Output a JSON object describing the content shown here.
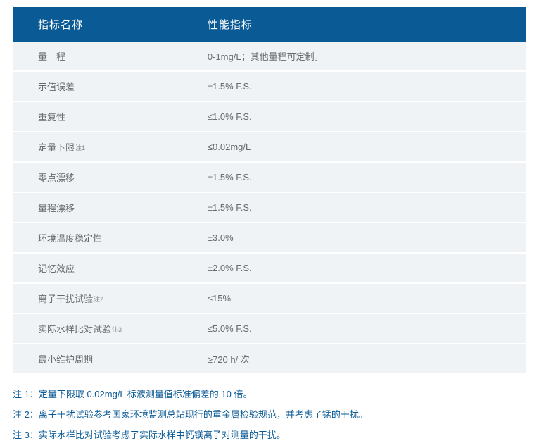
{
  "table": {
    "header_bg": "#0a5a95",
    "header_color": "#ffffff",
    "row_bg": "#f0f3f5",
    "text_color": "#666a6e",
    "columns": [
      "指标名称",
      "性能指标"
    ],
    "rows": [
      {
        "name": "量　程",
        "sup": "",
        "value": "0-1mg/L；其他量程可定制。"
      },
      {
        "name": "示值误差",
        "sup": "",
        "value": "±1.5% F.S."
      },
      {
        "name": "重复性",
        "sup": "",
        "value": "≤1.0% F.S."
      },
      {
        "name": "定量下限",
        "sup": "注1",
        "value": "≤0.02mg/L"
      },
      {
        "name": "零点漂移",
        "sup": "",
        "value": "±1.5% F.S."
      },
      {
        "name": "量程漂移",
        "sup": "",
        "value": "±1.5% F.S."
      },
      {
        "name": "环境温度稳定性",
        "sup": "",
        "value": "±3.0%"
      },
      {
        "name": "记忆效应",
        "sup": "",
        "value": "±2.0% F.S."
      },
      {
        "name": "离子干扰试验",
        "sup": "注2",
        "value": "≤15%"
      },
      {
        "name": "实际水样比对试验",
        "sup": "注3",
        "value": "≤5.0% F.S."
      },
      {
        "name": "最小维护周期",
        "sup": "",
        "value": "≥720 h/ 次"
      }
    ]
  },
  "notes": {
    "color": "#0a5a95",
    "items": [
      "注 1：定量下限取 0.02mg/L 标液测量值标准偏差的 10 倍。",
      "注 2：离子干扰试验参考国家环境监测总站现行的重金属检验规范，并考虑了锰的干扰。",
      "注 3：实际水样比对试验考虑了实际水样中钙镁离子对测量的干扰。"
    ]
  }
}
